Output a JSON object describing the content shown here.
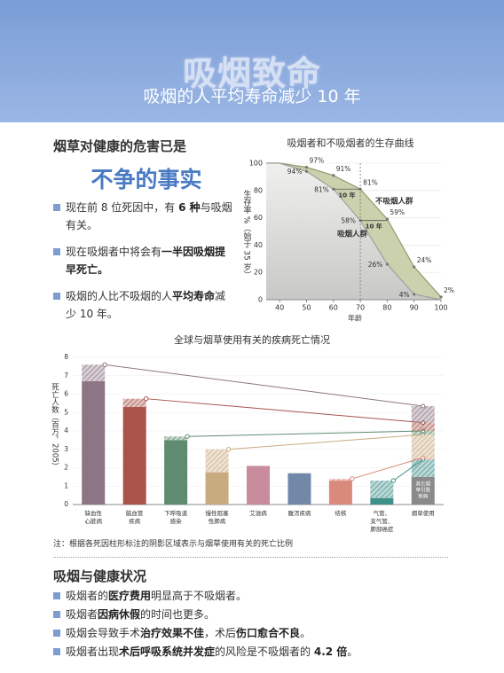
{
  "header": {
    "title": "吸烟致命",
    "subtitle": "吸烟的人平均寿命减少 10 年"
  },
  "intro": {
    "heading": "烟草对健康的危害已是",
    "emphasis": "不争的事实",
    "bullets": [
      [
        {
          "text": "现在前 8 位死因中，有 ",
          "strong": false
        },
        {
          "text": "6 种",
          "strong": true
        },
        {
          "text": "与吸烟有关。",
          "strong": false
        }
      ],
      [
        {
          "text": "现在吸烟者中将会有",
          "strong": false
        },
        {
          "text": "一半因吸烟提早死亡。",
          "strong": true
        }
      ],
      [
        {
          "text": "吸烟的人比不吸烟的人",
          "strong": false
        },
        {
          "text": "平均寿命",
          "strong": true
        },
        {
          "text": "减少 10 年。",
          "strong": false
        }
      ]
    ]
  },
  "chart_data": [
    {
      "type": "area",
      "title": "吸烟者和不吸烟者的生存曲线",
      "x_label": "年龄",
      "y_label": "生存率 %（始于 35 岁）",
      "x": [
        35,
        40,
        50,
        60,
        70,
        80,
        90,
        100
      ],
      "xlim": [
        35,
        100
      ],
      "ylim": [
        0,
        100
      ],
      "xticks": [
        40,
        50,
        60,
        70,
        80,
        90,
        100
      ],
      "yticks": [
        0,
        20,
        40,
        60,
        80,
        100
      ],
      "vline": 70,
      "series": [
        {
          "name": "不吸烟人群",
          "color": "#c7cfa8",
          "line_color": "#8f9c6c",
          "values": [
            100,
            100,
            97,
            91,
            81,
            59,
            24,
            2
          ],
          "value_labels": [
            null,
            null,
            "97%",
            "91%",
            "81%",
            "59%",
            "24%",
            "2%"
          ]
        },
        {
          "name": "吸烟人群",
          "color": "#d6d6d6",
          "line_color": "#a0a0a0",
          "values": [
            100,
            100,
            94,
            81,
            58,
            26,
            4,
            0
          ],
          "value_labels": [
            null,
            null,
            "94%",
            "81%",
            "58%",
            "26%",
            "4%",
            null
          ]
        }
      ],
      "annotations": [
        {
          "text": "10 年",
          "value": 81,
          "x": [
            60,
            70
          ]
        },
        {
          "text": "10 年",
          "value": 58,
          "x": [
            70,
            80
          ]
        }
      ]
    },
    {
      "type": "bar",
      "title": "全球与烟草使用有关的疾病死亡情况",
      "y_label": "死亡人数（百万，2005）",
      "categories": [
        [
          "缺血性",
          "心脏病"
        ],
        [
          "脑血管",
          "疾病"
        ],
        [
          "下呼吸道",
          "感染"
        ],
        [
          "慢性阻塞",
          "性肺病"
        ],
        [
          "艾滋病"
        ],
        [
          "腹泻疾病"
        ],
        [
          "结核"
        ],
        [
          "气管、",
          "支气管、",
          "肺部癌症"
        ],
        [
          "烟草使用"
        ]
      ],
      "colors": [
        "#8e7585",
        "#a8544b",
        "#5f8c70",
        "#c9ab80",
        "#c98c9c",
        "#7188a8",
        "#d98a7a",
        "#3f908a",
        "#8a8a8a"
      ],
      "ylim": [
        0,
        8
      ],
      "yticks": [
        0,
        1,
        2,
        3,
        4,
        5,
        6,
        7,
        8
      ],
      "series": [
        {
          "values": [
            6.7,
            5.3,
            3.5,
            1.75,
            2.1,
            1.7,
            1.3,
            0.35,
            null
          ],
          "pattern": "solid"
        },
        {
          "values": [
            0.9,
            0.45,
            0.2,
            1.25,
            null,
            null,
            0.1,
            0.95,
            null
          ],
          "pattern": "hatch"
        }
      ],
      "other": {
        "value": 1.5,
        "label": [
          "其它烟",
          "草引致",
          "疾病"
        ]
      }
    }
  ],
  "note": "注：根据各死因柱形标注的阴影区域表示与烟草使用有关的死亡比例",
  "health": {
    "heading": "吸烟与健康状况",
    "bullets": [
      [
        {
          "text": "吸烟者的",
          "strong": false
        },
        {
          "text": "医疗费用",
          "strong": true
        },
        {
          "text": "明显高于不吸烟者。",
          "strong": false
        }
      ],
      [
        {
          "text": "吸烟者",
          "strong": false
        },
        {
          "text": "因病休假",
          "strong": true
        },
        {
          "text": "的时间也更多。",
          "strong": false
        }
      ],
      [
        {
          "text": "吸烟会导致手术",
          "strong": false
        },
        {
          "text": "治疗效果不佳",
          "strong": true
        },
        {
          "text": "，术后",
          "strong": false
        },
        {
          "text": "伤口愈合不良",
          "strong": true
        },
        {
          "text": "。",
          "strong": false
        }
      ],
      [
        {
          "text": "吸烟者出现",
          "strong": false
        },
        {
          "text": "术后呼吸系统并发症",
          "strong": true
        },
        {
          "text": "的风险是不吸烟者的 ",
          "strong": false
        },
        {
          "text": "4.2 倍",
          "strong": true
        },
        {
          "text": "。",
          "strong": false
        }
      ]
    ]
  }
}
